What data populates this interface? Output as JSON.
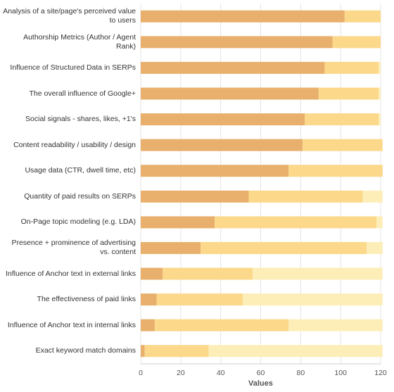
{
  "chart_data": {
    "type": "bar",
    "orientation": "horizontal",
    "stacked": true,
    "xlabel": "Values",
    "xlim": [
      0,
      120
    ],
    "xticks": [
      "0",
      "20",
      "40",
      "60",
      "80",
      "100",
      "120"
    ],
    "grid": true,
    "categories": [
      "Analysis of a site/page's perceived value to users",
      "Authorship Metrics (Author / Agent Rank)",
      "Influence of Structured Data in SERPs",
      "The overall influence of Google+",
      "Social signals - shares, likes, +1's",
      "Content readability / usability / design",
      "Usage data (CTR, dwell time, etc)",
      "Quantity of paid results on SERPs",
      "On-Page topic modeling (e.g. LDA)",
      "Presence + prominence of advertising vs. content",
      "Influence of Anchor text in external links",
      "The effectiveness of paid links",
      "Influence of Anchor text in internal links",
      "Exact keyword match domains"
    ],
    "series": [
      {
        "color": "#e8b06c",
        "values": [
          102,
          96,
          92,
          89,
          82,
          81,
          74,
          54,
          37,
          30,
          11,
          8,
          7,
          2
        ]
      },
      {
        "color": "#fbd88a",
        "values": [
          18,
          24,
          27,
          30,
          37,
          40,
          47,
          57,
          81,
          83,
          45,
          43,
          67,
          32
        ]
      },
      {
        "color": "#fdeeb8",
        "values": [
          0,
          0,
          1,
          1,
          1,
          0,
          0,
          10,
          3,
          8,
          65,
          70,
          47,
          87
        ]
      }
    ]
  }
}
